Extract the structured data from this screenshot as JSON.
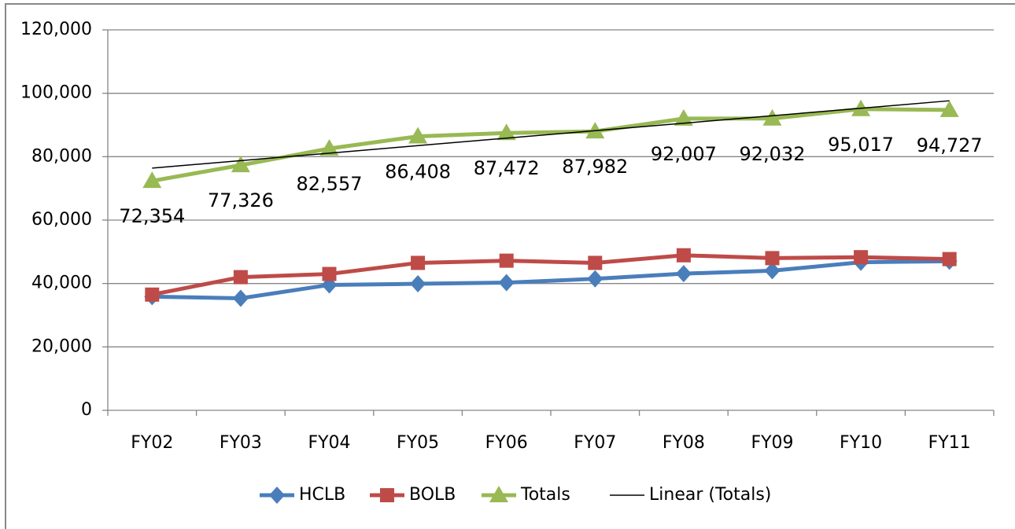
{
  "chart_data": {
    "type": "line",
    "categories": [
      "FY02",
      "FY03",
      "FY04",
      "FY05",
      "FY06",
      "FY07",
      "FY08",
      "FY09",
      "FY10",
      "FY11"
    ],
    "ylim": [
      0,
      120000
    ],
    "yticks": [
      0,
      {
        "value": 20000,
        "label": "20,000"
      },
      {
        "value": 40000,
        "label": "40,000"
      },
      {
        "value": 60000,
        "label": "60,000"
      },
      {
        "value": 80000,
        "label": "80,000"
      },
      {
        "value": 100000,
        "label": "100,000"
      },
      {
        "value": 120000,
        "label": "120,000"
      }
    ],
    "grid": true,
    "legend": "bottom",
    "series": [
      {
        "name": "HCLB",
        "color": "#4a7ebb",
        "marker": "diamond",
        "values": [
          35854,
          35326,
          39557,
          39908,
          40272,
          41482,
          43107,
          44032,
          46717,
          47027
        ]
      },
      {
        "name": "BOLB",
        "color": "#be4b48",
        "marker": "square",
        "values": [
          36500,
          42000,
          43000,
          46500,
          47200,
          46500,
          48900,
          48000,
          48300,
          47700
        ]
      },
      {
        "name": "Totals",
        "color": "#98b954",
        "marker": "triangle",
        "values": [
          72354,
          77326,
          82557,
          86408,
          87472,
          87982,
          92007,
          92032,
          95017,
          94727
        ],
        "value_labels": [
          "72,354",
          "77,326",
          "82,557",
          "86,408",
          "87,472",
          "87,982",
          "92,007",
          "92,032",
          "95,017",
          "94,727"
        ]
      },
      {
        "name": "Linear (Totals)",
        "color": "#000000",
        "marker": "none",
        "values": [
          76400,
          78760,
          81120,
          83480,
          85840,
          88200,
          90560,
          92920,
          95280,
          97640
        ]
      }
    ]
  }
}
